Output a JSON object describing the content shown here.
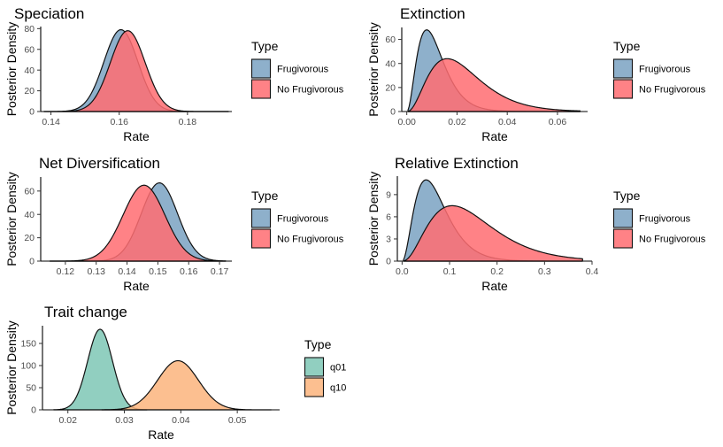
{
  "figure": {
    "ylabel": "Posterior Density",
    "xlabel": "Rate",
    "legend_title": "Type"
  },
  "chart_data": [
    {
      "type": "area",
      "title": "Speciation",
      "xlabel": "Rate",
      "ylabel": "Posterior Density",
      "xlim": [
        0.137,
        0.193
      ],
      "ylim": [
        0,
        82
      ],
      "x_ticks": [
        0.14,
        0.16,
        0.18
      ],
      "x_tick_labels": [
        "0.14",
        "0.16",
        "0.18"
      ],
      "y_ticks": [
        0,
        20,
        40,
        60,
        80
      ],
      "y_tick_labels": [
        "0",
        "20",
        "40",
        "60",
        "80"
      ],
      "grid": false,
      "legend": {
        "title": "Type",
        "position": "right"
      },
      "series": [
        {
          "name": "Frugivorous",
          "color": "#7BA3C3",
          "mean": 0.1605,
          "sd": 0.005,
          "x_range": [
            0.138,
            0.192
          ],
          "peak": 79
        },
        {
          "name": "No Frugivorous",
          "color": "#FF6E72",
          "mean": 0.1625,
          "sd": 0.0051,
          "x_range": [
            0.138,
            0.192
          ],
          "peak": 78
        }
      ]
    },
    {
      "type": "area",
      "title": "Extinction",
      "xlabel": "Rate",
      "ylabel": "Posterior Density",
      "xlim": [
        -0.002,
        0.072
      ],
      "ylim": [
        0,
        70
      ],
      "x_ticks": [
        0.0,
        0.02,
        0.04,
        0.06
      ],
      "x_tick_labels": [
        "0.00",
        "0.02",
        "0.04",
        "0.06"
      ],
      "y_ticks": [
        0,
        20,
        40,
        60
      ],
      "y_tick_labels": [
        "0",
        "20",
        "40",
        "60"
      ],
      "grid": false,
      "legend": {
        "title": "Type",
        "position": "right"
      },
      "series": [
        {
          "name": "Frugivorous",
          "color": "#7BA3C3",
          "shape": 3.2,
          "scale": 0.0036,
          "x_range": [
            0.0005,
            0.069
          ],
          "peak": 68
        },
        {
          "name": "No Frugivorous",
          "color": "#FF6E72",
          "shape": 3.4,
          "scale": 0.0067,
          "x_range": [
            0.0005,
            0.069
          ],
          "peak": 44
        }
      ]
    },
    {
      "type": "area",
      "title": "Net Diversification",
      "xlabel": "Rate",
      "ylabel": "Posterior Density",
      "xlim": [
        0.112,
        0.174
      ],
      "ylim": [
        0,
        72
      ],
      "x_ticks": [
        0.12,
        0.13,
        0.14,
        0.15,
        0.16,
        0.17
      ],
      "x_tick_labels": [
        "0.12",
        "0.13",
        "0.14",
        "0.15",
        "0.16",
        "0.17"
      ],
      "y_ticks": [
        0,
        20,
        40,
        60
      ],
      "y_tick_labels": [
        "0",
        "20",
        "40",
        "60"
      ],
      "grid": false,
      "legend": {
        "title": "Type",
        "position": "right"
      },
      "series": [
        {
          "name": "Frugivorous",
          "color": "#7BA3C3",
          "mean": 0.1505,
          "sd": 0.0059,
          "x_range": [
            0.115,
            0.172
          ],
          "peak": 67
        },
        {
          "name": "No Frugivorous",
          "color": "#FF6E72",
          "mean": 0.1455,
          "sd": 0.0068,
          "x_range": [
            0.115,
            0.172
          ],
          "peak": 65
        }
      ]
    },
    {
      "type": "area",
      "title": "Relative Extinction",
      "xlabel": "Rate",
      "ylabel": "Posterior Density",
      "xlim": [
        -0.01,
        0.4
      ],
      "ylim": [
        0,
        11.5
      ],
      "x_ticks": [
        0.0,
        0.1,
        0.2,
        0.3,
        0.4
      ],
      "x_tick_labels": [
        "0.0",
        "0.1",
        "0.2",
        "0.3",
        "0.4"
      ],
      "y_ticks": [
        0,
        3,
        6,
        9
      ],
      "y_tick_labels": [
        "0",
        "3",
        "6",
        "9"
      ],
      "grid": false,
      "legend": {
        "title": "Type",
        "position": "right"
      },
      "series": [
        {
          "name": "Frugivorous",
          "color": "#7BA3C3",
          "shape": 3.2,
          "scale": 0.023,
          "x_range": [
            0.003,
            0.38
          ],
          "peak": 11.0
        },
        {
          "name": "No Frugivorous",
          "color": "#FF6E72",
          "shape": 3.4,
          "scale": 0.044,
          "x_range": [
            0.003,
            0.38
          ],
          "peak": 7.5
        }
      ]
    },
    {
      "type": "area",
      "title": "Trait change",
      "xlabel": "Rate",
      "ylabel": "Posterior Density",
      "xlim": [
        0.0155,
        0.0575
      ],
      "ylim": [
        0,
        190
      ],
      "x_ticks": [
        0.02,
        0.03,
        0.04,
        0.05
      ],
      "x_tick_labels": [
        "0.02",
        "0.03",
        "0.04",
        "0.05"
      ],
      "y_ticks": [
        0,
        50,
        100,
        150
      ],
      "y_tick_labels": [
        "0",
        "50",
        "100",
        "150"
      ],
      "grid": false,
      "legend": {
        "title": "Type",
        "position": "right"
      },
      "series": [
        {
          "name": "q01",
          "color": "#7FC7B6",
          "mean": 0.0257,
          "sd": 0.0022,
          "x_range": [
            0.0175,
            0.034
          ],
          "peak": 182
        },
        {
          "name": "q10",
          "color": "#FBB47E",
          "mean": 0.0395,
          "sd": 0.0036,
          "x_range": [
            0.026,
            0.056
          ],
          "peak": 111
        }
      ]
    }
  ]
}
